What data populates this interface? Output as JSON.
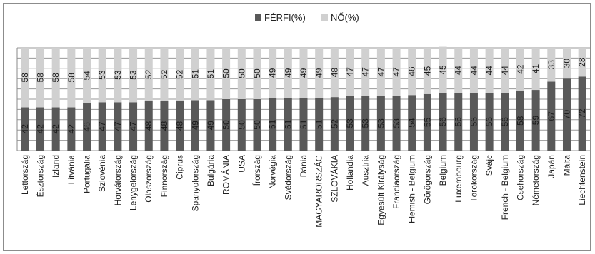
{
  "chart_data": {
    "type": "bar",
    "stacked": true,
    "percent_stacked": true,
    "legend_position": "top",
    "gridlines": true,
    "ylim": [
      0,
      100
    ],
    "categories": [
      "Lettország",
      "Észtország",
      "Izland",
      "Litvánia",
      "Portugália",
      "Szlovénia",
      "Horvátország",
      "Lenygelország",
      "Olaszország",
      "Finnország",
      "Ciprus",
      "Spanyolország",
      "Bulgária",
      "ROMÁNIA",
      "USA",
      "Írország",
      "Norvégia",
      "Svédország",
      "Dánia",
      "MAGYARORSZÁG",
      "SZLOVÁKIA",
      "Hollandia",
      "Ausztria",
      "Egyesült Királyság",
      "Franciaország",
      "Flemish - Belgium",
      "Görögország",
      "Belgium",
      "Luxembourg",
      "Törökország",
      "Svájc",
      "French - Belgium",
      "Csehország",
      "Németország",
      "Japán",
      "Málta",
      "Liechtenstein"
    ],
    "series": [
      {
        "name": "FÉRFI(%)",
        "color": "#595959",
        "values": [
          42,
          42,
          42,
          42,
          46,
          47,
          47,
          47,
          48,
          48,
          48,
          49,
          49,
          50,
          50,
          50,
          51,
          51,
          51,
          51,
          52,
          53,
          53,
          53,
          53,
          54,
          55,
          56,
          56,
          56,
          56,
          56,
          58,
          59,
          67,
          70,
          72
        ]
      },
      {
        "name": "NŐ(%)",
        "color": "#d0d0d0",
        "values": [
          58,
          58,
          58,
          58,
          54,
          53,
          53,
          53,
          52,
          52,
          52,
          51,
          51,
          50,
          50,
          50,
          49,
          49,
          49,
          49,
          48,
          47,
          47,
          47,
          47,
          46,
          45,
          45,
          44,
          44,
          44,
          44,
          42,
          41,
          33,
          30,
          28
        ]
      }
    ]
  }
}
